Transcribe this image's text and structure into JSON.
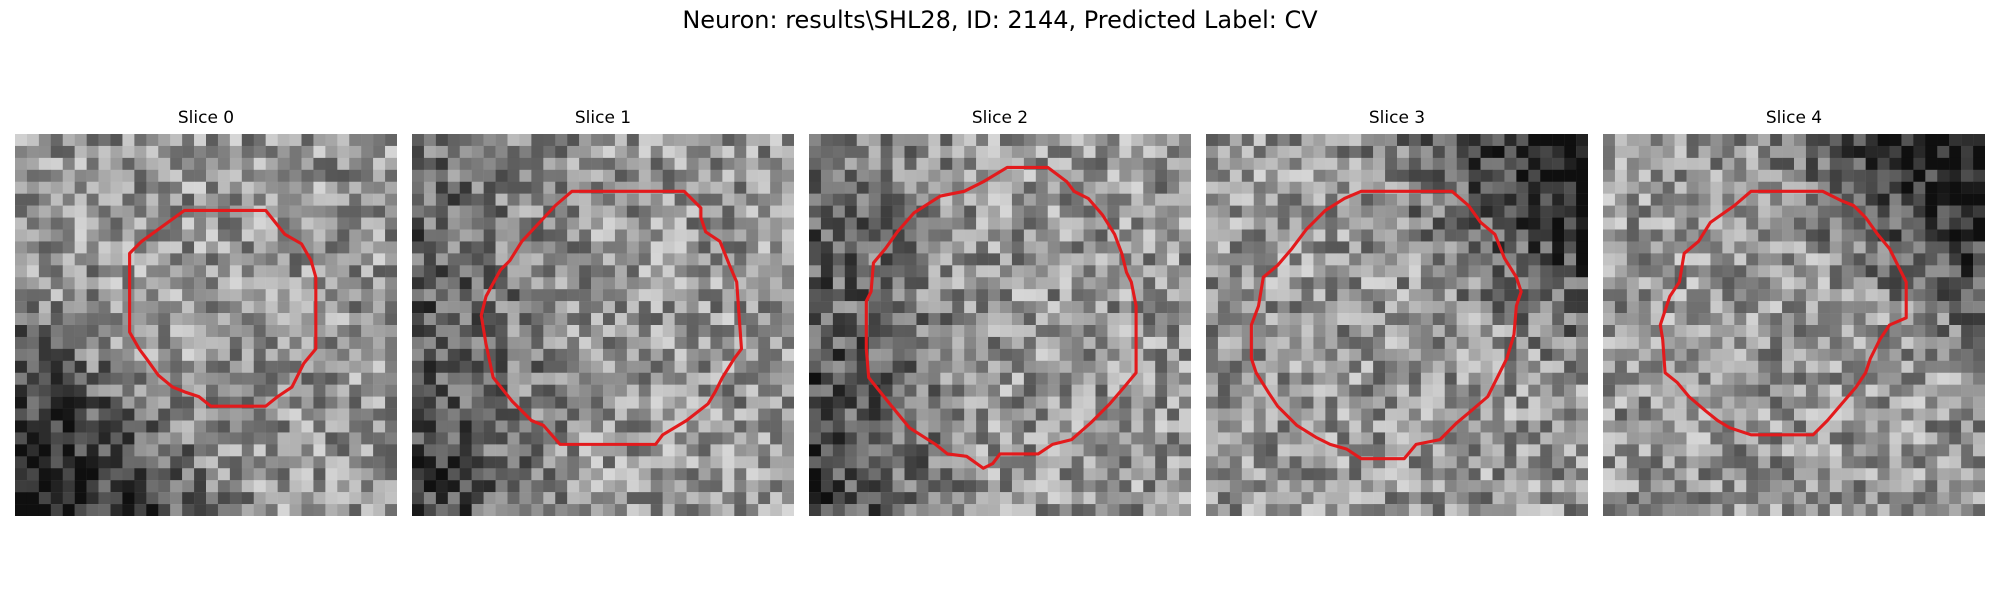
{
  "figure": {
    "title": "Neuron: results\\SHL28, ID: 2144, Predicted Label: CV"
  },
  "contour_color": "#e31a1c",
  "panels": [
    {
      "title": "Slice 0",
      "seed": 11,
      "dark_corner": "bottom-left",
      "contour": [
        [
          8.2,
          3.2
        ],
        [
          10.5,
          3.2
        ],
        [
          11.3,
          4.2
        ],
        [
          12.0,
          4.6
        ],
        [
          12.4,
          5.3
        ],
        [
          12.6,
          6.0
        ],
        [
          12.6,
          9.0
        ],
        [
          12.1,
          9.6
        ],
        [
          11.6,
          10.6
        ],
        [
          11.0,
          11.0
        ],
        [
          10.5,
          11.4
        ],
        [
          8.2,
          11.4
        ],
        [
          7.7,
          11.0
        ],
        [
          7.1,
          10.8
        ],
        [
          6.6,
          10.6
        ],
        [
          6.0,
          10.1
        ],
        [
          5.5,
          9.4
        ],
        [
          5.2,
          9.0
        ],
        [
          4.8,
          8.3
        ],
        [
          4.8,
          5.0
        ],
        [
          5.3,
          4.5
        ],
        [
          7.1,
          3.2
        ]
      ]
    },
    {
      "title": "Slice 1",
      "seed": 23,
      "dark_corner": "left",
      "contour": [
        [
          6.7,
          2.4
        ],
        [
          11.4,
          2.4
        ],
        [
          12.1,
          3.1
        ],
        [
          12.1,
          3.5
        ],
        [
          12.3,
          4.1
        ],
        [
          12.9,
          4.5
        ],
        [
          13.3,
          5.5
        ],
        [
          13.6,
          6.2
        ],
        [
          13.8,
          9.0
        ],
        [
          13.5,
          9.4
        ],
        [
          13.0,
          10.2
        ],
        [
          12.7,
          10.8
        ],
        [
          12.4,
          11.3
        ],
        [
          11.5,
          12.0
        ],
        [
          10.5,
          12.6
        ],
        [
          10.2,
          13.0
        ],
        [
          6.2,
          13.0
        ],
        [
          5.5,
          12.2
        ],
        [
          5.0,
          12.0
        ],
        [
          4.2,
          11.2
        ],
        [
          3.4,
          10.2
        ],
        [
          3.1,
          8.8
        ],
        [
          2.9,
          7.6
        ],
        [
          3.1,
          6.8
        ],
        [
          3.7,
          5.7
        ],
        [
          4.1,
          5.3
        ],
        [
          4.6,
          4.5
        ],
        [
          6.0,
          3.0
        ]
      ]
    },
    {
      "title": "Slice 2",
      "seed": 37,
      "dark_corner": "left",
      "contour": [
        [
          8.3,
          1.4
        ],
        [
          10.0,
          1.4
        ],
        [
          10.8,
          2.0
        ],
        [
          11.1,
          2.4
        ],
        [
          11.7,
          2.7
        ],
        [
          12.3,
          3.4
        ],
        [
          12.8,
          4.2
        ],
        [
          13.1,
          5.0
        ],
        [
          13.3,
          5.8
        ],
        [
          13.5,
          6.2
        ],
        [
          13.7,
          7.2
        ],
        [
          13.7,
          10.0
        ],
        [
          13.2,
          10.6
        ],
        [
          12.6,
          11.3
        ],
        [
          11.8,
          12.1
        ],
        [
          11.0,
          12.8
        ],
        [
          10.2,
          13.0
        ],
        [
          9.6,
          13.4
        ],
        [
          8.0,
          13.4
        ],
        [
          7.7,
          13.8
        ],
        [
          7.3,
          14.0
        ],
        [
          6.6,
          13.5
        ],
        [
          5.8,
          13.4
        ],
        [
          5.3,
          13.0
        ],
        [
          4.2,
          12.3
        ],
        [
          3.3,
          11.2
        ],
        [
          2.5,
          10.2
        ],
        [
          2.4,
          9.0
        ],
        [
          2.4,
          7.0
        ],
        [
          2.6,
          6.6
        ],
        [
          2.7,
          5.4
        ],
        [
          3.2,
          4.8
        ],
        [
          3.7,
          4.1
        ],
        [
          4.4,
          3.3
        ],
        [
          5.5,
          2.6
        ],
        [
          6.5,
          2.4
        ],
        [
          7.3,
          2.0
        ]
      ]
    },
    {
      "title": "Slice 3",
      "seed": 51,
      "dark_corner": "top-right",
      "contour": [
        [
          6.5,
          2.4
        ],
        [
          10.3,
          2.4
        ],
        [
          11.0,
          3.0
        ],
        [
          11.5,
          3.7
        ],
        [
          12.1,
          4.2
        ],
        [
          12.5,
          5.2
        ],
        [
          13.0,
          6.0
        ],
        [
          13.2,
          6.6
        ],
        [
          13.0,
          7.2
        ],
        [
          12.9,
          8.4
        ],
        [
          12.6,
          9.4
        ],
        [
          12.2,
          10.2
        ],
        [
          11.8,
          11.0
        ],
        [
          11.1,
          11.6
        ],
        [
          10.5,
          12.1
        ],
        [
          9.8,
          12.8
        ],
        [
          8.8,
          13.0
        ],
        [
          8.3,
          13.6
        ],
        [
          6.5,
          13.6
        ],
        [
          5.9,
          13.2
        ],
        [
          5.2,
          13.0
        ],
        [
          4.6,
          12.7
        ],
        [
          3.8,
          12.2
        ],
        [
          3.0,
          11.4
        ],
        [
          2.6,
          10.8
        ],
        [
          2.1,
          10.0
        ],
        [
          1.9,
          9.4
        ],
        [
          1.9,
          8.0
        ],
        [
          2.2,
          7.2
        ],
        [
          2.4,
          6.0
        ],
        [
          3.0,
          5.5
        ],
        [
          3.6,
          4.8
        ],
        [
          4.2,
          4.0
        ],
        [
          5.0,
          3.2
        ],
        [
          5.8,
          2.7
        ]
      ]
    },
    {
      "title": "Slice 4",
      "seed": 67,
      "dark_corner": "top-right",
      "contour": [
        [
          6.2,
          2.4
        ],
        [
          9.2,
          2.4
        ],
        [
          10.0,
          2.8
        ],
        [
          10.5,
          3.0
        ],
        [
          11.0,
          3.5
        ],
        [
          11.5,
          4.2
        ],
        [
          12.0,
          4.8
        ],
        [
          12.3,
          5.4
        ],
        [
          12.7,
          6.2
        ],
        [
          12.7,
          7.7
        ],
        [
          12.0,
          8.0
        ],
        [
          11.6,
          8.6
        ],
        [
          11.2,
          9.4
        ],
        [
          11.0,
          10.0
        ],
        [
          10.6,
          10.6
        ],
        [
          10.0,
          11.3
        ],
        [
          9.4,
          12.0
        ],
        [
          8.8,
          12.6
        ],
        [
          6.2,
          12.6
        ],
        [
          5.3,
          12.3
        ],
        [
          4.8,
          12.0
        ],
        [
          4.3,
          11.6
        ],
        [
          3.6,
          11.0
        ],
        [
          3.1,
          10.4
        ],
        [
          2.6,
          10.0
        ],
        [
          2.5,
          8.6
        ],
        [
          2.4,
          8.0
        ],
        [
          2.6,
          7.4
        ],
        [
          2.8,
          6.8
        ],
        [
          3.2,
          6.2
        ],
        [
          3.4,
          5.0
        ],
        [
          4.0,
          4.5
        ],
        [
          4.5,
          3.7
        ],
        [
          5.5,
          3.0
        ]
      ]
    }
  ]
}
